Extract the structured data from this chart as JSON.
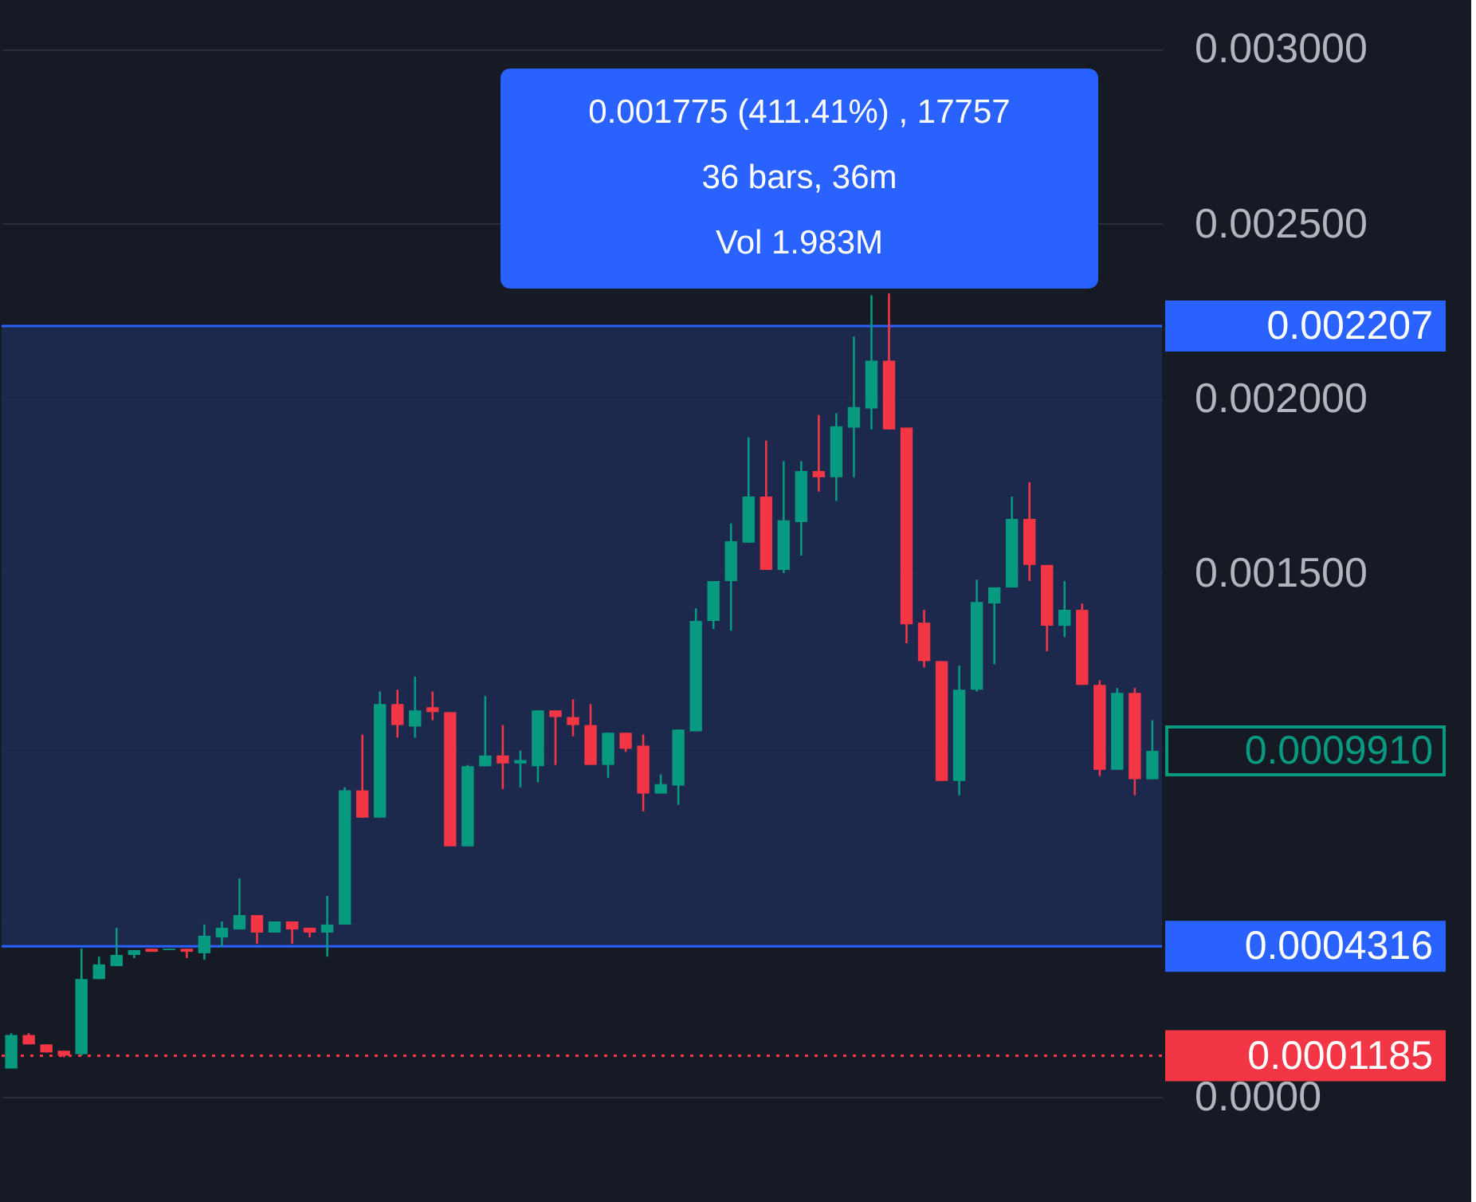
{
  "chart_data": {
    "type": "candlestick",
    "categories": [
      null,
      null,
      null,
      null,
      null,
      null,
      null,
      null,
      null,
      null,
      null,
      null,
      null,
      null,
      null,
      null,
      null,
      null,
      null,
      null,
      null,
      null,
      null,
      null,
      null,
      null,
      null,
      null,
      null,
      null,
      null,
      null,
      null,
      null,
      null,
      null,
      null,
      null,
      null,
      null,
      null,
      null,
      null,
      null,
      null,
      null,
      null,
      null,
      null,
      null,
      null,
      null,
      null,
      null,
      null,
      null,
      null,
      null,
      null,
      null,
      null,
      null,
      null,
      null,
      null,
      null
    ],
    "ohlc": [
      [
        8.23e-05,
        0.000183,
        8.23e-05,
        0.000178
      ],
      [
        0.000178,
        0.000183,
        0.000151,
        0.000151
      ],
      [
        0.000151,
        0.000151,
        0.000128,
        0.000128
      ],
      [
        0.000133,
        0.000133,
        0.000114,
        0.000119
      ],
      [
        0.000123,
        0.000425,
        0.000119,
        0.000338
      ],
      [
        0.000338,
        0.000402,
        0.000338,
        0.00038
      ],
      [
        0.000375,
        0.000485,
        0.000375,
        0.000407
      ],
      [
        0.000407,
        0.000421,
        0.000398,
        0.000421
      ],
      [
        0.000425,
        0.000425,
        0.000416,
        0.000416
      ],
      [
        0.000421,
        0.000425,
        0.000421,
        0.000425
      ],
      [
        0.000425,
        0.000425,
        0.000398,
        0.000416
      ],
      [
        0.000412,
        0.000494,
        0.000393,
        0.000462
      ],
      [
        0.000457,
        0.000503,
        0.00043,
        0.000485
      ],
      [
        0.00048,
        0.000626,
        0.00048,
        0.000521
      ],
      [
        0.000521,
        0.000521,
        0.000439,
        0.000471
      ],
      [
        0.000471,
        0.000503,
        0.000471,
        0.000503
      ],
      [
        0.000503,
        0.000503,
        0.000439,
        0.00048
      ],
      [
        0.000485,
        0.000485,
        0.000457,
        0.000471
      ],
      [
        0.000471,
        0.000576,
        0.000402,
        0.000494
      ],
      [
        0.000494,
        0.000887,
        0.000494,
        0.000878
      ],
      [
        0.000878,
        0.001038,
        0.0008,
        0.0008
      ],
      [
        0.0008,
        0.001161,
        0.0008,
        0.001125
      ],
      [
        0.001125,
        0.001166,
        0.001029,
        0.001065
      ],
      [
        0.001061,
        0.001203,
        0.001029,
        0.001107
      ],
      [
        0.001116,
        0.001161,
        0.001079,
        0.001102
      ],
      [
        0.001102,
        0.001102,
        0.000718,
        0.000718
      ],
      [
        0.000718,
        0.000951,
        0.000718,
        0.000947
      ],
      [
        0.000947,
        0.001148,
        0.000947,
        0.000978
      ],
      [
        0.000978,
        0.001065,
        0.000882,
        0.000955
      ],
      [
        0.000955,
        0.000992,
        0.000887,
        0.000965
      ],
      [
        0.000947,
        0.001107,
        0.000901,
        0.001107
      ],
      [
        0.001107,
        0.001107,
        0.000951,
        0.001088
      ],
      [
        0.001088,
        0.001139,
        0.001033,
        0.001065
      ],
      [
        0.001065,
        0.001125,
        0.000951,
        0.000951
      ],
      [
        0.000951,
        0.001043,
        0.000914,
        0.001043
      ],
      [
        0.001043,
        0.001043,
        0.000988,
        0.000997
      ],
      [
        0.001006,
        0.001038,
        0.000818,
        0.000869
      ],
      [
        0.000869,
        0.000924,
        0.000869,
        0.000896
      ],
      [
        0.000892,
        0.001052,
        0.000837,
        0.001052
      ],
      [
        0.001047,
        0.001399,
        0.001047,
        0.001363
      ],
      [
        0.001363,
        0.001477,
        0.00134,
        0.001477
      ],
      [
        0.001477,
        0.001642,
        0.001335,
        0.001591
      ],
      [
        0.001587,
        0.001888,
        0.001587,
        0.001719
      ],
      [
        0.001719,
        0.001879,
        0.001509,
        0.001509
      ],
      [
        0.001509,
        0.00182,
        0.0015,
        0.001651
      ],
      [
        0.001646,
        0.00182,
        0.00155,
        0.001792
      ],
      [
        0.001792,
        0.001952,
        0.001733,
        0.001774
      ],
      [
        0.001774,
        0.001957,
        0.001706,
        0.00192
      ],
      [
        0.001916,
        0.002177,
        0.001774,
        0.001975
      ],
      [
        0.001971,
        0.002295,
        0.001911,
        0.002108
      ],
      [
        0.002108,
        0.0023,
        0.001911,
        0.001911
      ],
      [
        0.001916,
        0.001916,
        0.001299,
        0.001353
      ],
      [
        0.001358,
        0.001395,
        0.00123,
        0.001248
      ],
      [
        0.001248,
        0.001248,
        0.000905,
        0.000905
      ],
      [
        0.000905,
        0.001235,
        0.000864,
        0.001166
      ],
      [
        0.001166,
        0.001481,
        0.001161,
        0.001417
      ],
      [
        0.001413,
        0.001459,
        0.001239,
        0.001459
      ],
      [
        0.001459,
        0.001719,
        0.001459,
        0.001655
      ],
      [
        0.001655,
        0.00176,
        0.001477,
        0.001523
      ],
      [
        0.001523,
        0.001523,
        0.001276,
        0.001349
      ],
      [
        0.001349,
        0.001477,
        0.001317,
        0.001395
      ],
      [
        0.001395,
        0.001413,
        0.00118,
        0.00118
      ],
      [
        0.00118,
        0.001193,
        0.000919,
        0.000937
      ],
      [
        0.000937,
        0.001171,
        0.000937,
        0.001157
      ],
      [
        0.001157,
        0.001171,
        0.000864,
        0.00091
      ],
      [
        0.00091,
        0.001079,
        0.00091,
        0.000991
      ]
    ],
    "colors": [
      "#089981",
      "#f23645",
      "#f23645",
      "#f23645",
      "#089981",
      "#089981",
      "#089981",
      "#089981",
      "#f23645",
      "#089981",
      "#f23645",
      "#089981",
      "#089981",
      "#089981",
      "#f23645",
      "#089981",
      "#f23645",
      "#f23645",
      "#089981",
      "#089981",
      "#f23645",
      "#089981",
      "#f23645",
      "#089981",
      "#f23645",
      "#f23645",
      "#089981",
      "#089981",
      "#f23645",
      "#089981",
      "#089981",
      "#f23645",
      "#f23645",
      "#f23645",
      "#089981",
      "#f23645",
      "#f23645",
      "#089981",
      "#089981",
      "#089981",
      "#089981",
      "#089981",
      "#089981",
      "#f23645",
      "#089981",
      "#089981",
      "#f23645",
      "#089981",
      "#089981",
      "#089981",
      "#f23645",
      "#f23645",
      "#f23645",
      "#f23645",
      "#089981",
      "#089981",
      "#089981",
      "#089981",
      "#f23645",
      "#f23645",
      "#089981",
      "#f23645",
      "#f23645",
      "#089981",
      "#f23645",
      "#089981"
    ],
    "ylim": [
      -0.0003,
      0.00314
    ],
    "yticks": [
      {
        "value": 0,
        "label": "0.0000"
      },
      {
        "value": 0.0005,
        "label": null
      },
      {
        "value": 0.001,
        "label": null
      },
      {
        "value": 0.0015,
        "label": "0.001500"
      },
      {
        "value": 0.002,
        "label": "0.002000"
      },
      {
        "value": 0.0025,
        "label": "0.002500"
      },
      {
        "value": 0.003,
        "label": "0.003000"
      }
    ],
    "grid": "y",
    "bands": [
      {
        "axis": "y",
        "from": 0.0004316,
        "to": 0.002207,
        "color": "#1e2a52"
      }
    ],
    "ref_lines": [
      {
        "axis": "y",
        "value": 0.002207,
        "label": "0.002207",
        "color": "#2962ff",
        "line_style": "solid"
      },
      {
        "axis": "y",
        "value": 0.0004316,
        "label": "0.0004316",
        "color": "#2962ff",
        "line_style": "solid"
      },
      {
        "axis": "y",
        "value": 0.0001185,
        "label": "0.0001185",
        "color": "#f23645",
        "line_style": "dotted"
      }
    ],
    "annotations": [
      "0.001775 (411.41%) , 17757",
      "36 bars, 36m",
      "Vol 1.983M",
      "0.0009910"
    ]
  }
}
